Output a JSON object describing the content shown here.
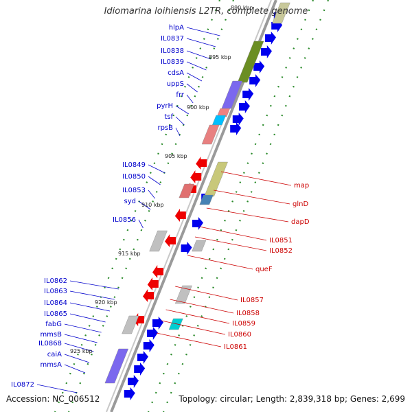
{
  "title": "Idiomarina loihiensis L2TR, complete genome",
  "footer": {
    "accession": "Accession: NC_006512",
    "summary": "Topology: circular; Length: 2,839,318 bp; Genes: 2,699"
  },
  "colors": {
    "forward_gene": "#0000ee",
    "reverse_gene": "#ee0000",
    "left_label": "#0000cc",
    "right_label": "#cc0000",
    "dots": "#2a8a2a",
    "backbone": "#9a9a9a"
  },
  "kbp_markers": [
    "890 kbp",
    "895 kbp",
    "900 kbp",
    "905 kbp",
    "910 kbp",
    "915 kbp",
    "920 kbp",
    "925 kbp"
  ],
  "left_genes": [
    "hlpA",
    "IL0837",
    "IL0838",
    "IL0839",
    "cdsA",
    "uppS",
    "frr",
    "pyrH",
    "tsf",
    "rpsB",
    "IL0849",
    "IL0850",
    "IL0853",
    "syd",
    "IL0856",
    "IL0862",
    "IL0863",
    "IL0864",
    "IL0865",
    "fabG",
    "mmsB",
    "IL0868",
    "caiA",
    "mmsA",
    "IL0872"
  ],
  "right_genes": [
    "map",
    "glnD",
    "dapD",
    "IL0851",
    "IL0852",
    "queF",
    "IL0857",
    "IL0858",
    "IL0859",
    "IL0860",
    "IL0861"
  ]
}
